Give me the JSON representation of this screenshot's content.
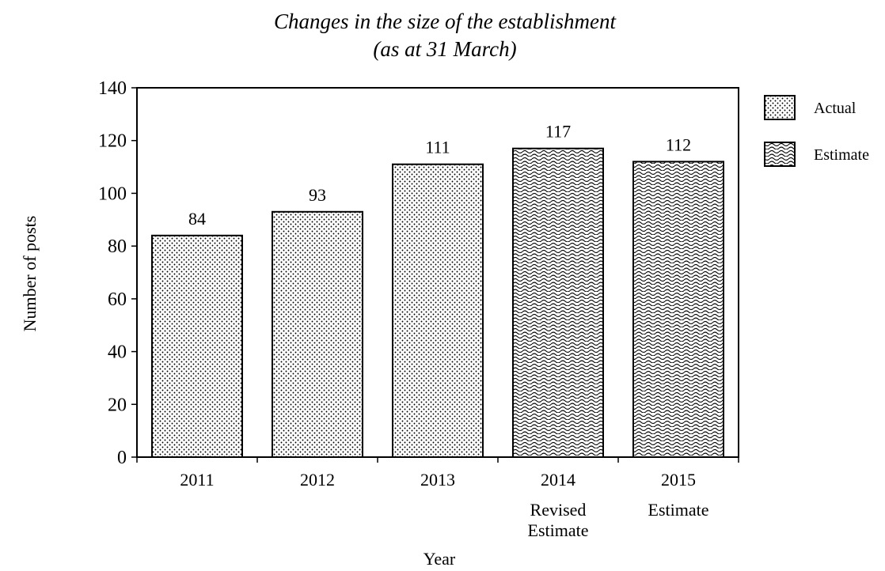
{
  "chart_data": {
    "type": "bar",
    "title": "Changes in the size of the establishment",
    "subtitle": "(as at 31 March)",
    "xlabel": "Year",
    "ylabel": "Number of posts",
    "ylim": [
      0,
      140
    ],
    "yticks": [
      0,
      20,
      40,
      60,
      80,
      100,
      120,
      140
    ],
    "grid": false,
    "legend_position": "top-right",
    "categories": [
      [
        "2011"
      ],
      [
        "2012"
      ],
      [
        "2013"
      ],
      [
        "2014",
        "Revised",
        "Estimate"
      ],
      [
        "2015",
        "Estimate"
      ]
    ],
    "values": [
      84,
      93,
      111,
      117,
      112
    ],
    "value_labels": [
      "84",
      "93",
      "111",
      "117",
      "112"
    ],
    "bar_types": [
      "actual",
      "actual",
      "actual",
      "estimate",
      "estimate"
    ],
    "legend": [
      {
        "key": "actual",
        "label": "Actual",
        "pattern": "dots"
      },
      {
        "key": "estimate",
        "label": "Estimate",
        "pattern": "waves"
      }
    ],
    "colors": {
      "bar_fill": "#ffffff",
      "ink": "#000000"
    }
  }
}
